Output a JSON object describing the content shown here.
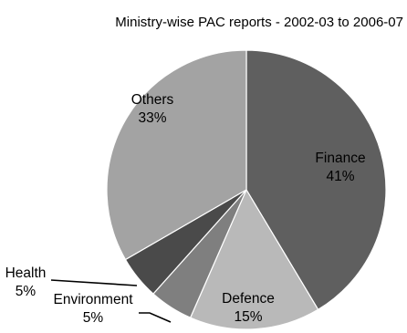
{
  "chart_data": {
    "type": "pie",
    "title": "Ministry-wise PAC reports - 2002-03 to 2006-07",
    "slices": [
      {
        "label": "Finance",
        "value": 41,
        "value_label": "41%",
        "color": "#5f5f5f"
      },
      {
        "label": "Defence",
        "value": 15,
        "value_label": "15%",
        "color": "#b9b9b9"
      },
      {
        "label": "Environment",
        "value": 5,
        "value_label": "5%",
        "color": "#7f7f7f"
      },
      {
        "label": "Health",
        "value": 5,
        "value_label": "5%",
        "color": "#4a4a4a"
      },
      {
        "label": "Others",
        "value": 33,
        "value_label": "33%",
        "color": "#a3a3a3"
      }
    ],
    "start_angle_deg": 0,
    "direction": "clockwise",
    "legend": "none"
  }
}
